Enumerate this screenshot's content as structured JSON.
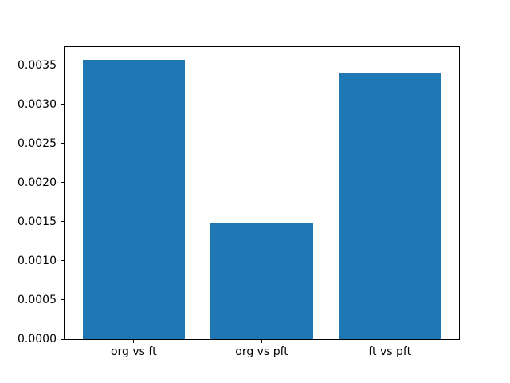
{
  "chart_data": {
    "type": "bar",
    "title": "",
    "xlabel": "",
    "ylabel": "",
    "categories": [
      "org vs ft",
      "org vs pft",
      "ft vs pft"
    ],
    "values": [
      0.00357,
      0.00149,
      0.0034
    ],
    "bar_color": "#1f77b4",
    "background_color": "#ffffff",
    "spine_color": "#000000",
    "grid": false,
    "legend": false,
    "bar_width": 0.8,
    "xlim": [
      -0.54,
      2.54
    ],
    "ylim": [
      0,
      0.003733
    ],
    "yticks": [
      {
        "value": 0.0,
        "label": "0.0000"
      },
      {
        "value": 0.0005,
        "label": "0.0005"
      },
      {
        "value": 0.001,
        "label": "0.0010"
      },
      {
        "value": 0.0015,
        "label": "0.0015"
      },
      {
        "value": 0.002,
        "label": "0.0020"
      },
      {
        "value": 0.0025,
        "label": "0.0025"
      },
      {
        "value": 0.003,
        "label": "0.0030"
      },
      {
        "value": 0.0035,
        "label": "0.0035"
      }
    ]
  }
}
